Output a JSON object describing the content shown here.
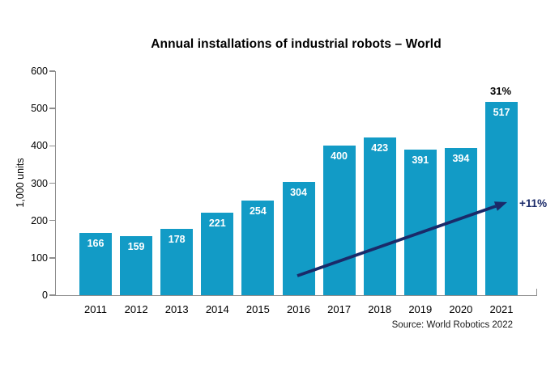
{
  "chart_data": {
    "type": "bar",
    "title": "Annual installations of industrial robots – World",
    "categories": [
      "2011",
      "2012",
      "2013",
      "2014",
      "2015",
      "2016",
      "2017",
      "2018",
      "2019",
      "2020",
      "2021"
    ],
    "values": [
      166,
      159,
      178,
      221,
      254,
      304,
      400,
      423,
      391,
      394,
      517
    ],
    "xlabel": "",
    "ylabel": "1,000 units",
    "ylim": [
      0,
      600
    ],
    "yticks": [
      0,
      100,
      200,
      300,
      400,
      500,
      600
    ],
    "grid": false,
    "legend": "none",
    "bar_color": "#129bc6",
    "value_label_color": "#ffffff",
    "axis_color": "#8e8e8e",
    "annotations": [
      {
        "type": "bar-top-label",
        "text": "31%",
        "category": "2021",
        "color": "#000000"
      },
      {
        "type": "trend-arrow-label",
        "text": "+11%",
        "color": "#1a2a69",
        "arrow_from_category": "2016",
        "arrow_to_category": "2021"
      }
    ],
    "source": "Source: World Robotics 2022"
  }
}
